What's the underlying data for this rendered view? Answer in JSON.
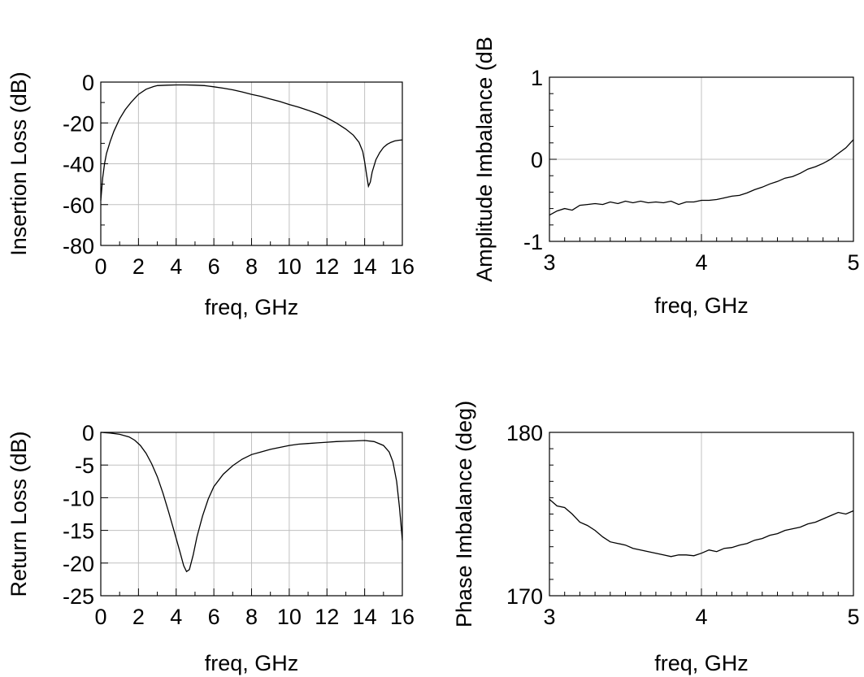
{
  "chart_data": [
    {
      "id": "insertion-loss",
      "type": "line",
      "xlabel": "freq, GHz",
      "ylabel": "Insertion Loss (dB)",
      "xlim": [
        0,
        16
      ],
      "ylim": [
        -80,
        0
      ],
      "xticks": [
        0,
        2,
        4,
        6,
        8,
        10,
        12,
        14,
        16
      ],
      "yticks": [
        0,
        -20,
        -40,
        -60,
        -80
      ],
      "x_tick_labels": [
        "0",
        "2",
        "4",
        "6",
        "8",
        "10",
        "12",
        "14",
        "16"
      ],
      "y_tick_labels": [
        "0",
        "-20",
        "-40",
        "-60",
        "-80"
      ],
      "minor_divisions": {
        "x": 2,
        "y": 2
      },
      "grid": true,
      "series": [
        {
          "x": [
            0,
            0.1,
            0.2,
            0.3,
            0.5,
            0.7,
            1.0,
            1.3,
            1.6,
            2.0,
            2.4,
            2.8,
            3.0,
            3.5,
            4.0,
            4.5,
            5.0,
            5.5,
            6.0,
            6.5,
            7.0,
            7.5,
            8.0,
            8.5,
            9.0,
            9.5,
            10.0,
            10.5,
            11.0,
            11.5,
            12.0,
            12.5,
            13.0,
            13.4,
            13.7,
            13.9,
            14.0,
            14.1,
            14.2,
            14.3,
            14.4,
            14.6,
            14.8,
            15.0,
            15.2,
            15.4,
            15.6,
            15.8,
            16.0
          ],
          "values": [
            -58,
            -47,
            -40,
            -35,
            -29,
            -24,
            -18,
            -13.5,
            -10,
            -6,
            -3.5,
            -2.2,
            -1.7,
            -1.5,
            -1.4,
            -1.4,
            -1.5,
            -1.7,
            -2.3,
            -3.0,
            -3.8,
            -4.8,
            -6.0,
            -7.0,
            -8.3,
            -9.5,
            -11.0,
            -12.3,
            -13.8,
            -15.5,
            -17.5,
            -20.0,
            -23.0,
            -26.0,
            -29.5,
            -34.0,
            -39.0,
            -45.0,
            -51.0,
            -49.0,
            -44.0,
            -38.0,
            -34.5,
            -32.0,
            -30.5,
            -29.5,
            -28.8,
            -28.5,
            -28.3
          ]
        }
      ]
    },
    {
      "id": "amplitude-imbalance",
      "type": "line",
      "xlabel": "freq, GHz",
      "ylabel": "Amplitude Imbalance (dB",
      "xlim": [
        3,
        5
      ],
      "ylim": [
        -1,
        1
      ],
      "xticks": [
        3,
        4,
        5
      ],
      "yticks": [
        1,
        0,
        -1
      ],
      "x_tick_labels": [
        "3",
        "4",
        "5"
      ],
      "y_tick_labels": [
        "1",
        "0",
        "-1"
      ],
      "minor_divisions": {
        "x": 10,
        "y": 5
      },
      "grid": true,
      "series": [
        {
          "x": [
            3.0,
            3.05,
            3.1,
            3.15,
            3.2,
            3.25,
            3.3,
            3.35,
            3.4,
            3.45,
            3.5,
            3.55,
            3.6,
            3.65,
            3.7,
            3.75,
            3.8,
            3.85,
            3.9,
            3.95,
            4.0,
            4.05,
            4.1,
            4.15,
            4.2,
            4.25,
            4.3,
            4.35,
            4.4,
            4.45,
            4.5,
            4.55,
            4.6,
            4.65,
            4.7,
            4.75,
            4.8,
            4.85,
            4.9,
            4.95,
            5.0
          ],
          "values": [
            -0.68,
            -0.63,
            -0.6,
            -0.62,
            -0.56,
            -0.55,
            -0.54,
            -0.55,
            -0.52,
            -0.54,
            -0.51,
            -0.53,
            -0.51,
            -0.53,
            -0.52,
            -0.53,
            -0.51,
            -0.55,
            -0.52,
            -0.52,
            -0.5,
            -0.5,
            -0.49,
            -0.47,
            -0.45,
            -0.44,
            -0.41,
            -0.37,
            -0.34,
            -0.3,
            -0.27,
            -0.23,
            -0.21,
            -0.17,
            -0.12,
            -0.09,
            -0.05,
            0.0,
            0.07,
            0.14,
            0.24
          ]
        }
      ]
    },
    {
      "id": "return-loss",
      "type": "line",
      "xlabel": "freq, GHz",
      "ylabel": "Return Loss (dB)",
      "xlim": [
        0,
        16
      ],
      "ylim": [
        -25,
        0
      ],
      "xticks": [
        0,
        2,
        4,
        6,
        8,
        10,
        12,
        14,
        16
      ],
      "yticks": [
        0,
        -5,
        -10,
        -15,
        -20,
        -25
      ],
      "x_tick_labels": [
        "0",
        "2",
        "4",
        "6",
        "8",
        "10",
        "12",
        "14",
        "16"
      ],
      "y_tick_labels": [
        "0",
        "-5",
        "-10",
        "-15",
        "-20",
        "-25"
      ],
      "minor_divisions": {
        "x": 2,
        "y": 1
      },
      "grid": true,
      "series": [
        {
          "x": [
            0,
            0.5,
            1.0,
            1.5,
            1.8,
            2.1,
            2.4,
            2.7,
            3.0,
            3.3,
            3.6,
            3.9,
            4.2,
            4.4,
            4.55,
            4.7,
            4.9,
            5.1,
            5.4,
            5.7,
            6.0,
            6.5,
            7.0,
            7.5,
            8.0,
            8.5,
            9.0,
            9.5,
            10.0,
            10.5,
            11.0,
            11.5,
            12.0,
            12.5,
            13.0,
            13.5,
            14.0,
            14.5,
            15.0,
            15.3,
            15.5,
            15.7,
            15.85,
            16.0
          ],
          "values": [
            0,
            -0.1,
            -0.3,
            -0.7,
            -1.2,
            -2.0,
            -3.2,
            -4.8,
            -6.8,
            -9.3,
            -12.2,
            -15.2,
            -18.3,
            -20.4,
            -21.3,
            -21.0,
            -18.8,
            -16.0,
            -12.8,
            -10.2,
            -8.3,
            -6.4,
            -5.1,
            -4.1,
            -3.4,
            -3.0,
            -2.6,
            -2.3,
            -2.0,
            -1.8,
            -1.7,
            -1.6,
            -1.5,
            -1.4,
            -1.35,
            -1.3,
            -1.25,
            -1.4,
            -2.0,
            -3.0,
            -4.5,
            -7.5,
            -11.5,
            -16.5
          ]
        }
      ]
    },
    {
      "id": "phase-imbalance",
      "type": "line",
      "xlabel": "freq, GHz",
      "ylabel": "Phase Imbalance (deg)",
      "xlim": [
        3,
        5
      ],
      "ylim": [
        170,
        180
      ],
      "xticks": [
        3,
        4,
        5
      ],
      "yticks": [
        180,
        170
      ],
      "x_tick_labels": [
        "3",
        "4",
        "5"
      ],
      "y_tick_labels": [
        "180",
        "170"
      ],
      "minor_divisions": {
        "x": 10,
        "y": 10
      },
      "grid": true,
      "series": [
        {
          "x": [
            3.0,
            3.05,
            3.1,
            3.15,
            3.2,
            3.25,
            3.3,
            3.35,
            3.4,
            3.45,
            3.5,
            3.55,
            3.6,
            3.65,
            3.7,
            3.75,
            3.8,
            3.85,
            3.9,
            3.95,
            4.0,
            4.05,
            4.1,
            4.15,
            4.2,
            4.25,
            4.3,
            4.35,
            4.4,
            4.45,
            4.5,
            4.55,
            4.6,
            4.65,
            4.7,
            4.75,
            4.8,
            4.85,
            4.9,
            4.95,
            5.0
          ],
          "values": [
            175.9,
            175.5,
            175.4,
            175.0,
            174.5,
            174.3,
            174.0,
            173.6,
            173.3,
            173.2,
            173.1,
            172.9,
            172.8,
            172.7,
            172.6,
            172.5,
            172.4,
            172.5,
            172.5,
            172.45,
            172.6,
            172.8,
            172.7,
            172.9,
            172.95,
            173.1,
            173.2,
            173.4,
            173.5,
            173.7,
            173.8,
            174.0,
            174.1,
            174.2,
            174.4,
            174.5,
            174.7,
            174.9,
            175.1,
            175.0,
            175.2
          ]
        }
      ]
    }
  ]
}
